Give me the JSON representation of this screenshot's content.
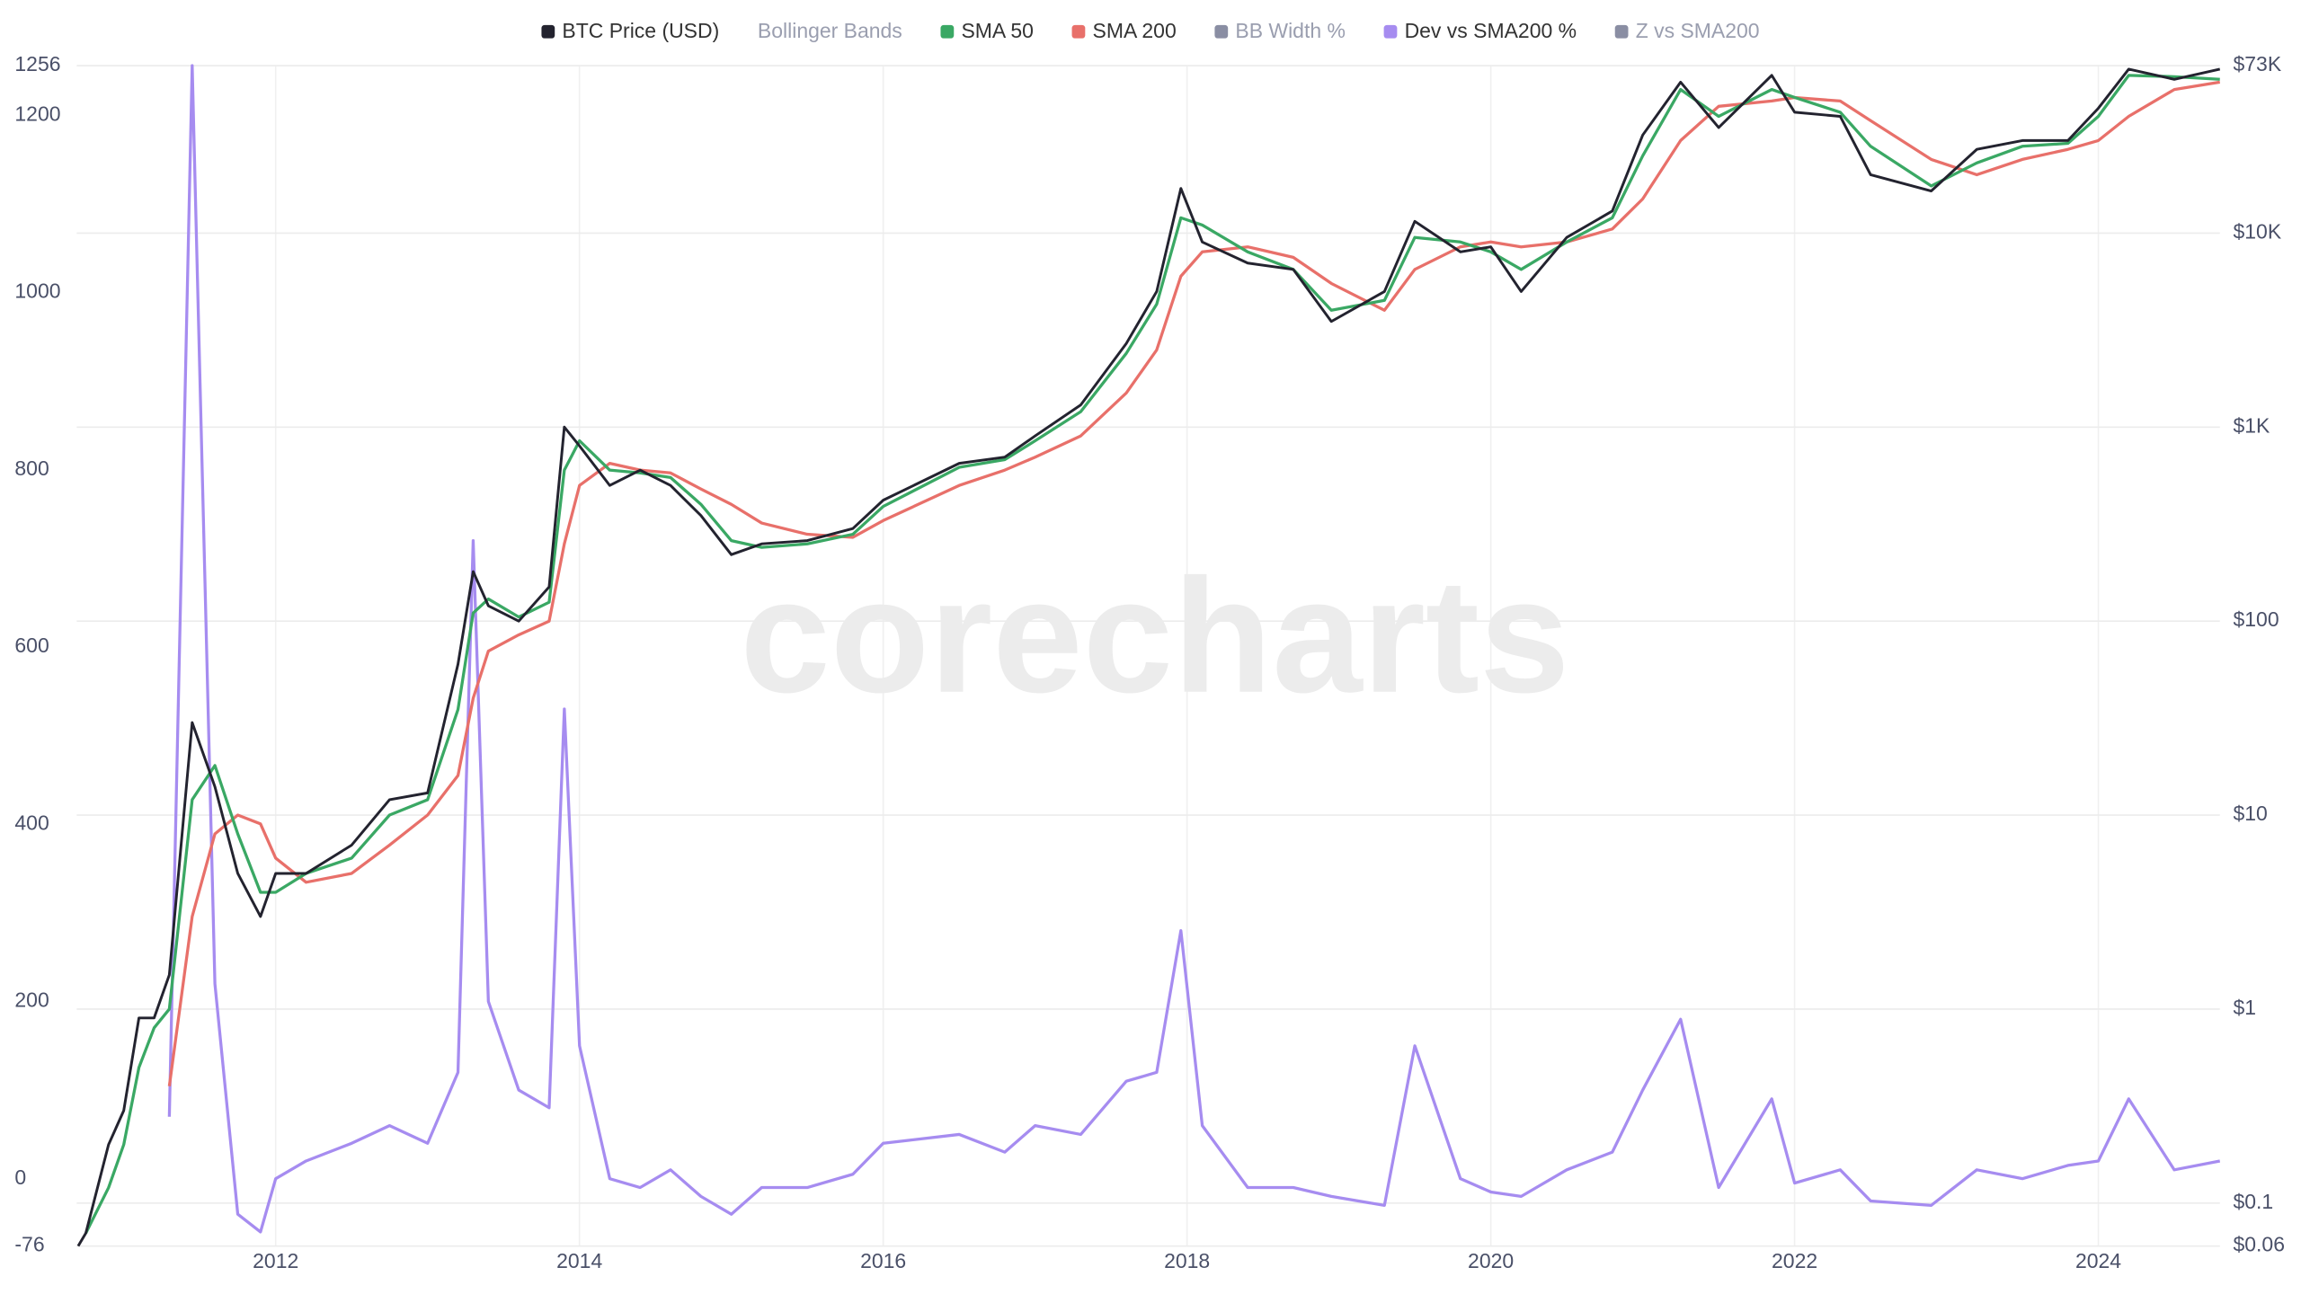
{
  "chart_data": {
    "type": "line",
    "watermark": "corecharts",
    "x": [
      2010.7,
      2010.75,
      2010.9,
      2011.0,
      2011.1,
      2011.2,
      2011.3,
      2011.45,
      2011.6,
      2011.75,
      2011.9,
      2012.0,
      2012.2,
      2012.5,
      2012.75,
      2013.0,
      2013.2,
      2013.3,
      2013.4,
      2013.6,
      2013.8,
      2013.9,
      2014.0,
      2014.2,
      2014.4,
      2014.6,
      2014.8,
      2015.0,
      2015.2,
      2015.5,
      2015.8,
      2016.0,
      2016.5,
      2016.8,
      2017.0,
      2017.3,
      2017.6,
      2017.8,
      2017.96,
      2018.1,
      2018.4,
      2018.7,
      2018.95,
      2019.3,
      2019.5,
      2019.8,
      2020.0,
      2020.2,
      2020.5,
      2020.8,
      2021.0,
      2021.25,
      2021.5,
      2021.85,
      2022.0,
      2022.3,
      2022.5,
      2022.9,
      2023.2,
      2023.5,
      2023.8,
      2024.0,
      2024.2,
      2024.5,
      2024.8
    ],
    "xlim": [
      2010.69,
      2024.8
    ],
    "xticks": [
      2012,
      2014,
      2016,
      2018,
      2020,
      2022,
      2024
    ],
    "ylim": [
      -76,
      1256
    ],
    "yticks": [
      -76,
      0,
      200,
      400,
      600,
      800,
      1000,
      1200,
      1256
    ],
    "y2lim": [
      0.06,
      73000
    ],
    "y2log": true,
    "y2ticks": [
      {
        "value": 0.06,
        "label": "$0.06"
      },
      {
        "value": 0.1,
        "label": "$0.1"
      },
      {
        "value": 1,
        "label": "$1"
      },
      {
        "value": 10,
        "label": "$10"
      },
      {
        "value": 100,
        "label": "$100"
      },
      {
        "value": 1000,
        "label": "$1K"
      },
      {
        "value": 10000,
        "label": "$10K"
      },
      {
        "value": 73000,
        "label": "$73K"
      }
    ],
    "grid": true,
    "legend": "top",
    "series": [
      {
        "name": "BTC Price (USD)",
        "color": "#23232f",
        "axis": "y2",
        "visible": true,
        "values": [
          0.06,
          0.07,
          0.2,
          0.3,
          0.9,
          0.9,
          1.5,
          30,
          14,
          5,
          3,
          5,
          5,
          7,
          12,
          13,
          60,
          180,
          120,
          100,
          150,
          1000,
          800,
          500,
          600,
          500,
          350,
          220,
          250,
          260,
          300,
          420,
          650,
          700,
          900,
          1300,
          2700,
          5000,
          17000,
          9000,
          7000,
          6500,
          3500,
          5000,
          11500,
          8000,
          8500,
          5000,
          9500,
          13000,
          32000,
          60000,
          35000,
          65000,
          42000,
          40000,
          20000,
          16500,
          27000,
          30000,
          30000,
          44000,
          70000,
          62000,
          70000
        ]
      },
      {
        "name": "Bollinger Bands",
        "visible": false
      },
      {
        "name": "SMA 50",
        "color": "#3aa864",
        "axis": "y2",
        "visible": true,
        "values": [
          null,
          0.07,
          0.12,
          0.2,
          0.5,
          0.8,
          1.0,
          12,
          18,
          8,
          4,
          4,
          5,
          6,
          10,
          12,
          35,
          110,
          130,
          105,
          125,
          600,
          850,
          600,
          580,
          550,
          400,
          260,
          240,
          250,
          280,
          390,
          620,
          680,
          850,
          1200,
          2400,
          4300,
          12000,
          11000,
          8000,
          6500,
          4000,
          4500,
          9500,
          9000,
          8000,
          6500,
          9000,
          12000,
          25000,
          55000,
          40000,
          55000,
          50000,
          42000,
          28000,
          17500,
          23000,
          28000,
          29000,
          40000,
          65000,
          64000,
          62000
        ]
      },
      {
        "name": "SMA 200",
        "color": "#e8706a",
        "axis": "y2",
        "visible": true,
        "values": [
          null,
          null,
          null,
          null,
          null,
          null,
          0.4,
          3,
          8,
          10,
          9,
          6,
          4.5,
          5,
          7,
          10,
          16,
          40,
          70,
          85,
          100,
          250,
          500,
          650,
          600,
          580,
          480,
          400,
          320,
          280,
          270,
          330,
          500,
          600,
          700,
          900,
          1500,
          2500,
          6000,
          8000,
          8500,
          7500,
          5500,
          4000,
          6500,
          8500,
          9000,
          8500,
          9000,
          10500,
          15000,
          30000,
          45000,
          48000,
          50000,
          48000,
          38000,
          24000,
          20000,
          24000,
          27000,
          30000,
          40000,
          55000,
          60000
        ]
      },
      {
        "name": "BB Width %",
        "color": "#8a8ea3",
        "visible": false
      },
      {
        "name": "Dev vs SMA200 %",
        "color": "#a68cf0",
        "axis": "y",
        "visible": true,
        "values": [
          null,
          null,
          null,
          null,
          null,
          null,
          70,
          1256,
          220,
          -40,
          -60,
          0,
          20,
          40,
          60,
          40,
          120,
          720,
          200,
          100,
          80,
          530,
          150,
          0,
          -10,
          10,
          -20,
          -40,
          -10,
          -10,
          5,
          40,
          50,
          30,
          60,
          50,
          110,
          120,
          280,
          60,
          -10,
          -10,
          -20,
          -30,
          150,
          0,
          -15,
          -20,
          10,
          30,
          100,
          180,
          -10,
          90,
          -5,
          10,
          -25,
          -30,
          10,
          0,
          15,
          20,
          90,
          10,
          20
        ]
      },
      {
        "name": "Z vs SMA200",
        "color": "#8a8ea3",
        "visible": false
      }
    ]
  }
}
